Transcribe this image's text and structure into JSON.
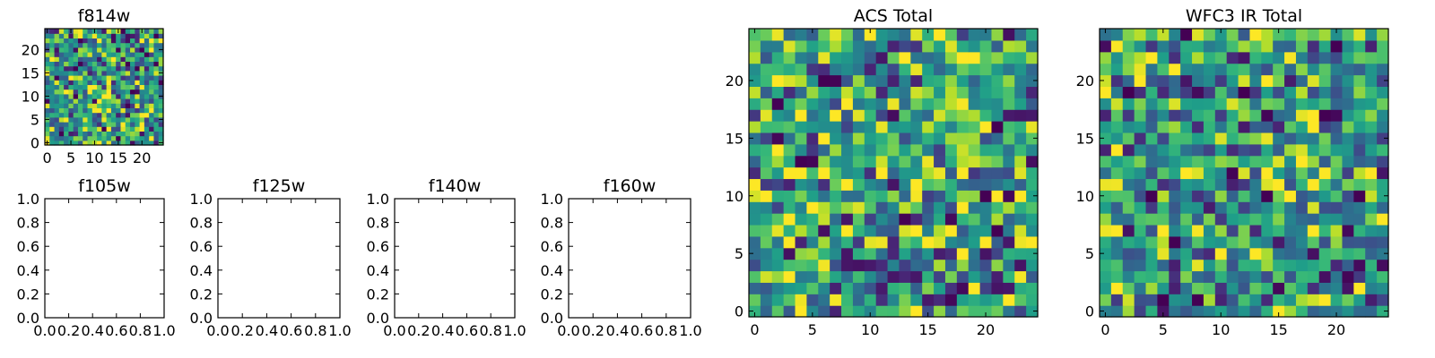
{
  "chart_data": [
    {
      "id": "f814w",
      "type": "heatmap",
      "title": "f814w",
      "grid_size": 25,
      "xlim": [
        -0.5,
        24.5
      ],
      "ylim": [
        -0.5,
        24.5
      ],
      "x_ticks": [
        0,
        5,
        10,
        15,
        20
      ],
      "y_ticks": [
        0,
        5,
        10,
        15,
        20
      ],
      "x_tick_labels": [
        "0",
        "5",
        "10",
        "15",
        "20"
      ],
      "y_tick_labels": [
        "0",
        "5",
        "10",
        "15",
        "20"
      ],
      "colormap": "viridis",
      "seed": 814
    },
    {
      "id": "f105w",
      "type": "empty",
      "title": "f105w",
      "xlim": [
        0,
        1
      ],
      "ylim": [
        0,
        1
      ],
      "x_ticks": [
        0.0,
        0.2,
        0.4,
        0.6,
        0.8,
        1.0
      ],
      "y_ticks": [
        0.0,
        0.2,
        0.4,
        0.6,
        0.8,
        1.0
      ],
      "x_tick_labels": [
        "0.0",
        "0.2",
        "0.4",
        "0.6",
        "0.8",
        "1.0"
      ],
      "y_tick_labels": [
        "0.0",
        "0.2",
        "0.4",
        "0.6",
        "0.8",
        "1.0"
      ]
    },
    {
      "id": "f125w",
      "type": "empty",
      "title": "f125w",
      "xlim": [
        0,
        1
      ],
      "ylim": [
        0,
        1
      ],
      "x_ticks": [
        0.0,
        0.2,
        0.4,
        0.6,
        0.8,
        1.0
      ],
      "y_ticks": [
        0.0,
        0.2,
        0.4,
        0.6,
        0.8,
        1.0
      ],
      "x_tick_labels": [
        "0.0",
        "0.2",
        "0.4",
        "0.6",
        "0.8",
        "1.0"
      ],
      "y_tick_labels": [
        "0.0",
        "0.2",
        "0.4",
        "0.6",
        "0.8",
        "1.0"
      ]
    },
    {
      "id": "f140w",
      "type": "empty",
      "title": "f140w",
      "xlim": [
        0,
        1
      ],
      "ylim": [
        0,
        1
      ],
      "x_ticks": [
        0.0,
        0.2,
        0.4,
        0.6,
        0.8,
        1.0
      ],
      "y_ticks": [
        0.0,
        0.2,
        0.4,
        0.6,
        0.8,
        1.0
      ],
      "x_tick_labels": [
        "0.0",
        "0.2",
        "0.4",
        "0.6",
        "0.8",
        "1.0"
      ],
      "y_tick_labels": [
        "0.0",
        "0.2",
        "0.4",
        "0.6",
        "0.8",
        "1.0"
      ]
    },
    {
      "id": "f160w",
      "type": "empty",
      "title": "f160w",
      "xlim": [
        0,
        1
      ],
      "ylim": [
        0,
        1
      ],
      "x_ticks": [
        0.0,
        0.2,
        0.4,
        0.6,
        0.8,
        1.0
      ],
      "y_ticks": [
        0.0,
        0.2,
        0.4,
        0.6,
        0.8,
        1.0
      ],
      "x_tick_labels": [
        "0.0",
        "0.2",
        "0.4",
        "0.6",
        "0.8",
        "1.0"
      ],
      "y_tick_labels": [
        "0.0",
        "0.2",
        "0.4",
        "0.6",
        "0.8",
        "1.0"
      ]
    },
    {
      "id": "acs_total",
      "type": "heatmap",
      "title": "ACS Total",
      "grid_size": 25,
      "xlim": [
        -0.5,
        24.5
      ],
      "ylim": [
        -0.5,
        24.5
      ],
      "x_ticks": [
        0,
        5,
        10,
        15,
        20
      ],
      "y_ticks": [
        0,
        5,
        10,
        15,
        20
      ],
      "x_tick_labels": [
        "0",
        "5",
        "10",
        "15",
        "20"
      ],
      "y_tick_labels": [
        "0",
        "5",
        "10",
        "15",
        "20"
      ],
      "colormap": "viridis",
      "seed": 1234
    },
    {
      "id": "wfc3_ir_total",
      "type": "heatmap",
      "title": "WFC3 IR Total",
      "grid_size": 25,
      "xlim": [
        -0.5,
        24.5
      ],
      "ylim": [
        -0.5,
        24.5
      ],
      "x_ticks": [
        0,
        5,
        10,
        15,
        20
      ],
      "y_ticks": [
        0,
        5,
        10,
        15,
        20
      ],
      "x_tick_labels": [
        "0",
        "5",
        "10",
        "15",
        "20"
      ],
      "y_tick_labels": [
        "0",
        "5",
        "10",
        "15",
        "20"
      ],
      "colormap": "viridis",
      "seed": 3160
    }
  ]
}
